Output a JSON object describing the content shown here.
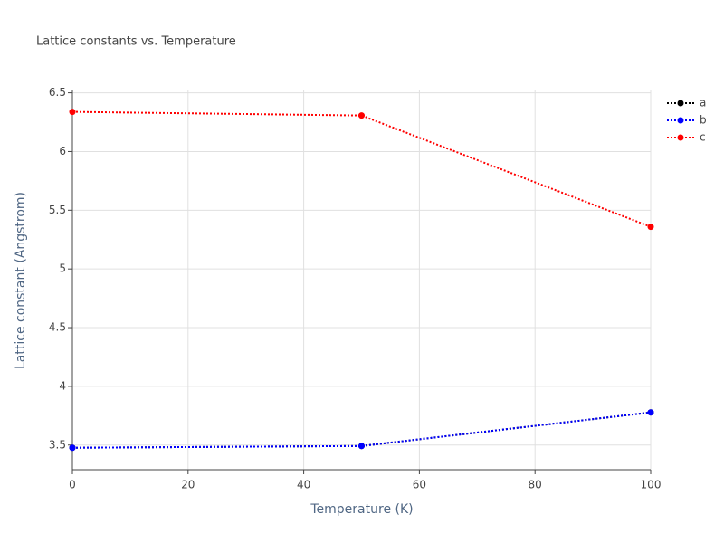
{
  "chart_data": {
    "type": "line",
    "title": "Lattice constants vs. Temperature",
    "x_label": "Temperature (K)",
    "y_label": "Lattice constant (Angstrom)",
    "x": [
      0,
      50,
      100
    ],
    "series": [
      {
        "name": "a",
        "color": "#000000",
        "values": [
          3.477,
          3.492,
          3.778
        ]
      },
      {
        "name": "b",
        "color": "#0000ff",
        "values": [
          3.477,
          3.492,
          3.778
        ]
      },
      {
        "name": "c",
        "color": "#ff0000",
        "values": [
          6.338,
          6.307,
          5.359
        ]
      }
    ],
    "xlim": [
      0,
      100
    ],
    "xticks": [
      0,
      20,
      40,
      60,
      80,
      100
    ],
    "ylim": [
      3.29,
      6.52
    ],
    "yticks": [
      3.5,
      4,
      4.5,
      5,
      5.5,
      6,
      6.5
    ],
    "grid": true,
    "legend": "top-right"
  }
}
